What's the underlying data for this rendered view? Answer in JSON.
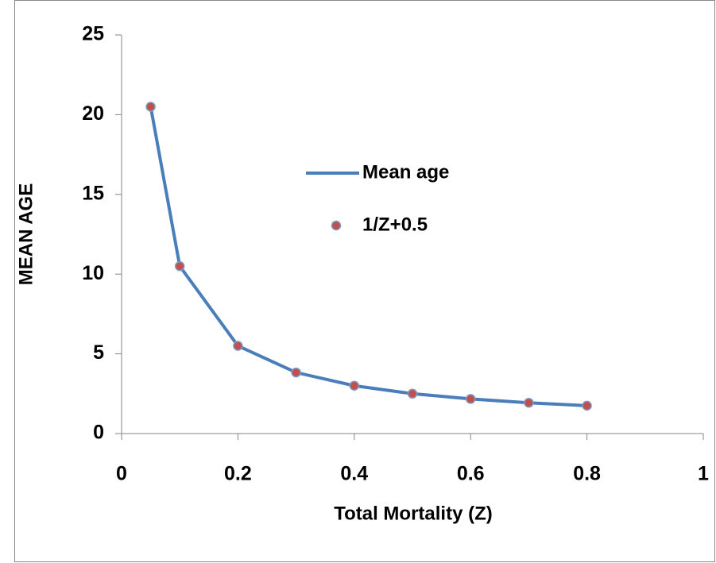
{
  "chart_data": {
    "type": "line",
    "x": [
      0.05,
      0.1,
      0.2,
      0.3,
      0.4,
      0.5,
      0.6,
      0.7,
      0.8
    ],
    "series": [
      {
        "name": "Mean age",
        "type": "line",
        "color": "#4a7ebb",
        "values": [
          20.5,
          10.5,
          5.5,
          3.83,
          3,
          2.5,
          2.17,
          1.93,
          1.75
        ]
      },
      {
        "name": "1/Z+0.5",
        "type": "scatter",
        "color": "#c0504d",
        "values": [
          20.5,
          10.5,
          5.5,
          3.83,
          3,
          2.5,
          2.17,
          1.93,
          1.75
        ]
      }
    ],
    "xlabel": "Total Mortality (Z)",
    "ylabel": "MEAN AGE",
    "xlim": [
      0,
      1
    ],
    "xticks": [
      0,
      0.2,
      0.4,
      0.6,
      0.8,
      1
    ],
    "ylim": [
      0,
      25
    ],
    "yticks": [
      0,
      5,
      10,
      15,
      20,
      25
    ],
    "grid": false
  }
}
